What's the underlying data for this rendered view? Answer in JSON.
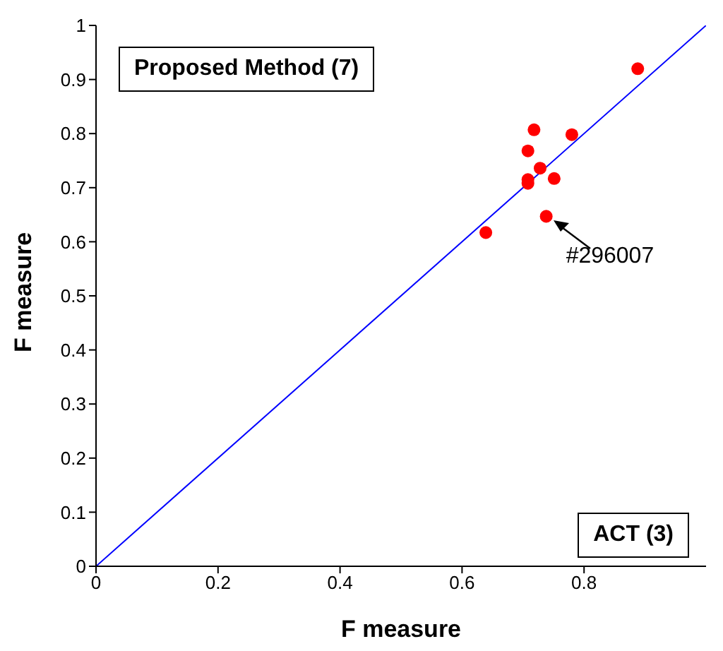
{
  "chart_data": {
    "type": "scatter",
    "xlabel": "F measure",
    "ylabel": "F measure",
    "xlim": [
      0,
      1
    ],
    "xticks": [
      0,
      0.2,
      0.4,
      0.6,
      0.8
    ],
    "ylim": [
      0,
      1
    ],
    "yticks": [
      0,
      0.1,
      0.2,
      0.3,
      0.4,
      0.5,
      0.6,
      0.7,
      0.8,
      0.9,
      1
    ],
    "grid": false,
    "series": [
      {
        "color": "#ff0000",
        "marker": "circle",
        "x": [
          0.888,
          0.718,
          0.78,
          0.708,
          0.728,
          0.708,
          0.708,
          0.751,
          0.738,
          0.639
        ],
        "values": [
          0.92,
          0.807,
          0.798,
          0.768,
          0.736,
          0.715,
          0.708,
          0.717,
          0.647,
          0.617
        ]
      },
      {
        "type": "line",
        "color": "#0000ff",
        "marker": "none",
        "line_style": "solid",
        "x": [
          0,
          1
        ],
        "values": [
          0,
          1
        ]
      }
    ],
    "annotations": [
      "Proposed Method (7)",
      "ACT (3)",
      {
        "text": "#296007",
        "x": 0.738,
        "y": 0.647
      }
    ]
  }
}
